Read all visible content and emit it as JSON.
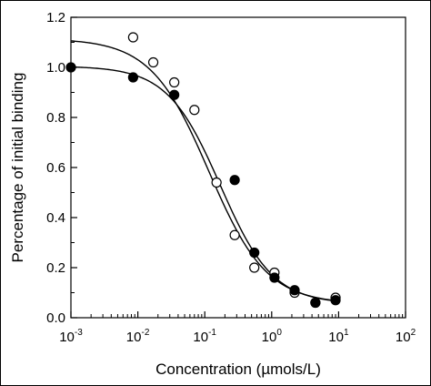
{
  "chart_data": {
    "type": "scatter",
    "title": "",
    "xlabel": "Concentration (µmols/L)",
    "ylabel": "Percentage of initial binding",
    "xscale": "log",
    "xlim": [
      0.001,
      100
    ],
    "ylim": [
      0.0,
      1.2
    ],
    "xticks": [
      {
        "value": 0.001,
        "base": "10",
        "exp": "-3"
      },
      {
        "value": 0.01,
        "base": "10",
        "exp": "-2"
      },
      {
        "value": 0.1,
        "base": "10",
        "exp": "-1"
      },
      {
        "value": 1,
        "base": "10",
        "exp": "0"
      },
      {
        "value": 10,
        "base": "10",
        "exp": "1"
      },
      {
        "value": 100,
        "base": "10",
        "exp": "2"
      }
    ],
    "yticks": [
      {
        "value": 0.0,
        "label": "0.0"
      },
      {
        "value": 0.2,
        "label": "0.2"
      },
      {
        "value": 0.4,
        "label": "0.4"
      },
      {
        "value": 0.6,
        "label": "0.6"
      },
      {
        "value": 0.8,
        "label": "0.8"
      },
      {
        "value": 1.0,
        "label": "1.0"
      },
      {
        "value": 1.2,
        "label": "1.2"
      }
    ],
    "grid": false,
    "legend": "none",
    "series": [
      {
        "marker": "open-circle",
        "color": "#000000",
        "x": [
          0.0085,
          0.017,
          0.035,
          0.07,
          0.15,
          0.28,
          0.55,
          1.1,
          2.2,
          4.5,
          9.0
        ],
        "y": [
          1.12,
          1.02,
          0.94,
          0.83,
          0.54,
          0.33,
          0.2,
          0.18,
          0.1,
          0.06,
          0.08
        ],
        "fit": {
          "top": 1.115,
          "bottom": 0.055,
          "ec50": 0.115,
          "hill": 1.0
        }
      },
      {
        "marker": "filled-circle",
        "color": "#000000",
        "x": [
          0.001,
          0.0085,
          0.035,
          0.28,
          0.55,
          1.1,
          2.2,
          4.5,
          9.0
        ],
        "y": [
          1.0,
          0.96,
          0.89,
          0.55,
          0.26,
          0.16,
          0.11,
          0.06,
          0.07
        ],
        "fit": {
          "top": 1.005,
          "bottom": 0.055,
          "ec50": 0.17,
          "hill": 1.1
        }
      }
    ]
  }
}
